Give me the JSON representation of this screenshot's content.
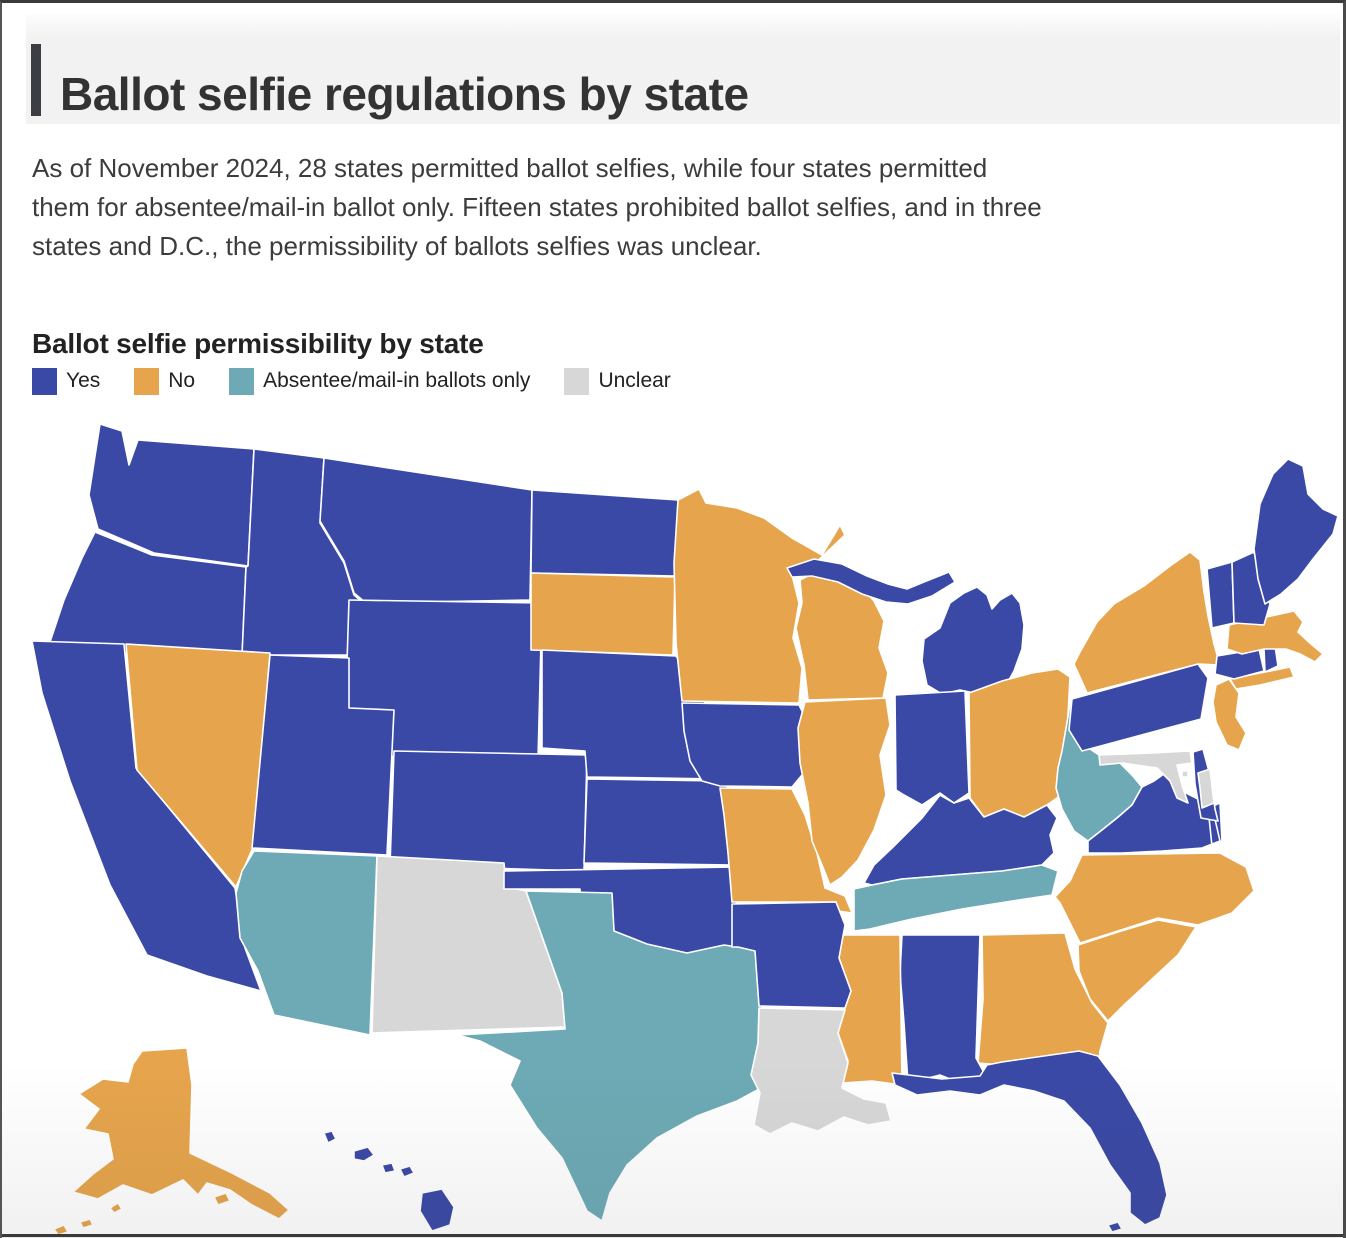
{
  "header": {
    "title": "Ballot selfie regulations by state"
  },
  "intro": {
    "text": "As of November 2024, 28 states permitted ballot selfies, while four states permitted them for absentee/mail-in ballot only. Fifteen states prohibited ballot selfies, and in three states and D.C., the permissibility of ballots selfies was unclear.",
    "lines": [
      "As of November 2024, 28 states permitted ballot selfies, while four states permitted",
      "them for absentee/mail-in ballot only. Fifteen states prohibited ballot selfies, and in three",
      "states and D.C., the permissibility of ballots selfies was unclear."
    ]
  },
  "map_section": {
    "subtitle": "Ballot selfie permissibility by state"
  },
  "legend": [
    {
      "key": "yes",
      "label": "Yes",
      "color": "#3a49a6"
    },
    {
      "key": "no",
      "label": "No",
      "color": "#e6a44c"
    },
    {
      "key": "absentee",
      "label": "Absentee/mail-in ballots only",
      "color": "#6daab5"
    },
    {
      "key": "unclear",
      "label": "Unclear",
      "color": "#d7d7d7"
    }
  ],
  "chart_data": {
    "type": "choropleth_map",
    "title": "Ballot selfie permissibility by state",
    "geography": "United States (50 states + D.C.)",
    "categories": {
      "yes": {
        "label": "Yes",
        "color": "#3a49a6"
      },
      "no": {
        "label": "No",
        "color": "#e6a44c"
      },
      "absentee": {
        "label": "Absentee/mail-in ballots only",
        "color": "#6daab5"
      },
      "unclear": {
        "label": "Unclear",
        "color": "#d7d7d7"
      }
    },
    "counts": {
      "yes": 28,
      "no": 15,
      "absentee": 4,
      "unclear_states_plus_dc": "3 states and D.C."
    },
    "states": [
      {
        "abbr": "WA",
        "name": "Washington",
        "status": "yes"
      },
      {
        "abbr": "OR",
        "name": "Oregon",
        "status": "yes"
      },
      {
        "abbr": "CA",
        "name": "California",
        "status": "yes"
      },
      {
        "abbr": "NV",
        "name": "Nevada",
        "status": "no"
      },
      {
        "abbr": "ID",
        "name": "Idaho",
        "status": "yes"
      },
      {
        "abbr": "MT",
        "name": "Montana",
        "status": "yes"
      },
      {
        "abbr": "WY",
        "name": "Wyoming",
        "status": "yes"
      },
      {
        "abbr": "UT",
        "name": "Utah",
        "status": "yes"
      },
      {
        "abbr": "CO",
        "name": "Colorado",
        "status": "yes"
      },
      {
        "abbr": "AZ",
        "name": "Arizona",
        "status": "absentee"
      },
      {
        "abbr": "NM",
        "name": "New Mexico",
        "status": "unclear"
      },
      {
        "abbr": "ND",
        "name": "North Dakota",
        "status": "yes"
      },
      {
        "abbr": "SD",
        "name": "South Dakota",
        "status": "no"
      },
      {
        "abbr": "NE",
        "name": "Nebraska",
        "status": "yes"
      },
      {
        "abbr": "KS",
        "name": "Kansas",
        "status": "yes"
      },
      {
        "abbr": "OK",
        "name": "Oklahoma",
        "status": "yes"
      },
      {
        "abbr": "TX",
        "name": "Texas",
        "status": "absentee"
      },
      {
        "abbr": "MN",
        "name": "Minnesota",
        "status": "no"
      },
      {
        "abbr": "IA",
        "name": "Iowa",
        "status": "yes"
      },
      {
        "abbr": "MO",
        "name": "Missouri",
        "status": "no"
      },
      {
        "abbr": "AR",
        "name": "Arkansas",
        "status": "yes"
      },
      {
        "abbr": "LA",
        "name": "Louisiana",
        "status": "unclear"
      },
      {
        "abbr": "WI",
        "name": "Wisconsin",
        "status": "no"
      },
      {
        "abbr": "IL",
        "name": "Illinois",
        "status": "no"
      },
      {
        "abbr": "MI",
        "name": "Michigan",
        "status": "yes"
      },
      {
        "abbr": "IN",
        "name": "Indiana",
        "status": "yes"
      },
      {
        "abbr": "OH",
        "name": "Ohio",
        "status": "no"
      },
      {
        "abbr": "KY",
        "name": "Kentucky",
        "status": "yes"
      },
      {
        "abbr": "TN",
        "name": "Tennessee",
        "status": "absentee"
      },
      {
        "abbr": "MS",
        "name": "Mississippi",
        "status": "no"
      },
      {
        "abbr": "AL",
        "name": "Alabama",
        "status": "yes"
      },
      {
        "abbr": "GA",
        "name": "Georgia",
        "status": "no"
      },
      {
        "abbr": "FL",
        "name": "Florida",
        "status": "yes"
      },
      {
        "abbr": "SC",
        "name": "South Carolina",
        "status": "no"
      },
      {
        "abbr": "NC",
        "name": "North Carolina",
        "status": "no"
      },
      {
        "abbr": "VA",
        "name": "Virginia",
        "status": "yes"
      },
      {
        "abbr": "WV",
        "name": "West Virginia",
        "status": "absentee"
      },
      {
        "abbr": "MD",
        "name": "Maryland",
        "status": "unclear"
      },
      {
        "abbr": "DE",
        "name": "Delaware",
        "status": "yes"
      },
      {
        "abbr": "PA",
        "name": "Pennsylvania",
        "status": "yes"
      },
      {
        "abbr": "NJ",
        "name": "New Jersey",
        "status": "no"
      },
      {
        "abbr": "NY",
        "name": "New York",
        "status": "no"
      },
      {
        "abbr": "CT",
        "name": "Connecticut",
        "status": "yes"
      },
      {
        "abbr": "RI",
        "name": "Rhode Island",
        "status": "yes"
      },
      {
        "abbr": "MA",
        "name": "Massachusetts",
        "status": "no"
      },
      {
        "abbr": "VT",
        "name": "Vermont",
        "status": "yes"
      },
      {
        "abbr": "NH",
        "name": "New Hampshire",
        "status": "yes"
      },
      {
        "abbr": "ME",
        "name": "Maine",
        "status": "yes"
      },
      {
        "abbr": "AK",
        "name": "Alaska",
        "status": "no"
      },
      {
        "abbr": "HI",
        "name": "Hawaii",
        "status": "yes"
      },
      {
        "abbr": "DC",
        "name": "District of Columbia",
        "status": "unclear"
      }
    ]
  }
}
